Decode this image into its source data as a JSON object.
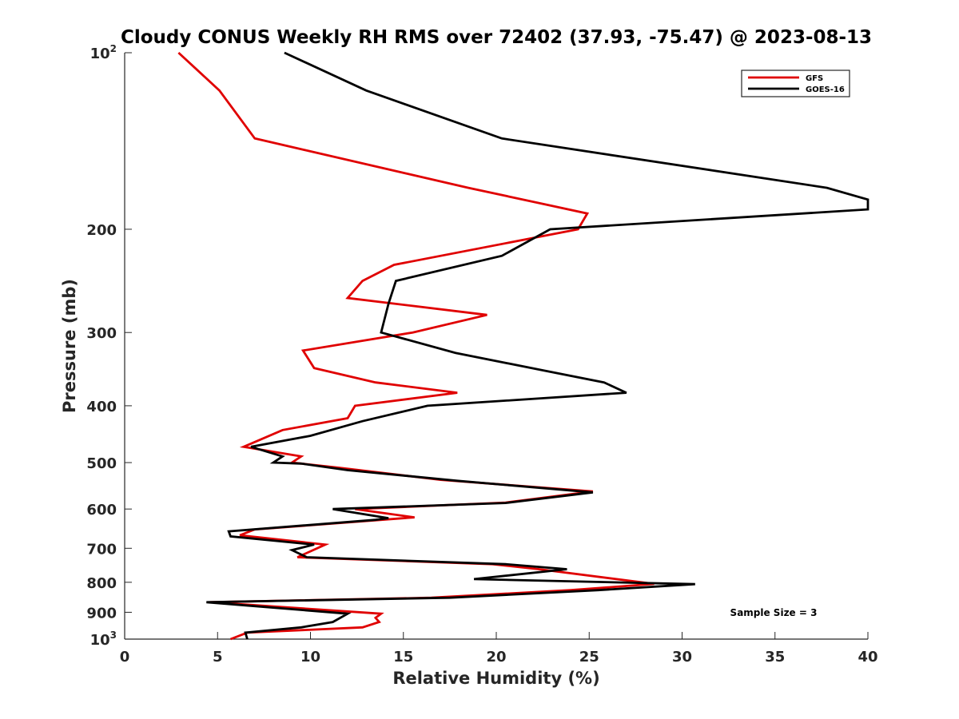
{
  "chart_data": {
    "type": "line",
    "title": "Cloudy CONUS Weekly RH RMS over 72402 (37.93, -75.47) @ 2023-08-13",
    "xlabel": "Relative Humidity (%)",
    "ylabel": "Pressure (mb)",
    "xlim": [
      0,
      40
    ],
    "ylim": [
      100,
      1000
    ],
    "y_scale": "log",
    "y_reversed": true,
    "grid": false,
    "legend_position": "top-right",
    "annotation": "Sample Size = 3",
    "x_ticks": [
      "0",
      "5",
      "10",
      "15",
      "20",
      "25",
      "30",
      "35",
      "40"
    ],
    "y_ticks": [
      {
        "value": 100,
        "base": "10",
        "exp": "2"
      },
      {
        "value": 200,
        "base": "200",
        "exp": ""
      },
      {
        "value": 300,
        "base": "300",
        "exp": ""
      },
      {
        "value": 400,
        "base": "400",
        "exp": ""
      },
      {
        "value": 500,
        "base": "500",
        "exp": ""
      },
      {
        "value": 600,
        "base": "600",
        "exp": ""
      },
      {
        "value": 700,
        "base": "700",
        "exp": ""
      },
      {
        "value": 800,
        "base": "800",
        "exp": ""
      },
      {
        "value": 900,
        "base": "900",
        "exp": ""
      },
      {
        "value": 1000,
        "base": "10",
        "exp": "3"
      }
    ],
    "series": [
      {
        "name": "GFS",
        "color": "#e00000",
        "points": [
          [
            2.9,
            100
          ],
          [
            5.1,
            116
          ],
          [
            7.0,
            140
          ],
          [
            18.5,
            170
          ],
          [
            24.9,
            188
          ],
          [
            24.4,
            200
          ],
          [
            14.5,
            230
          ],
          [
            12.8,
            245
          ],
          [
            12.0,
            262
          ],
          [
            19.5,
            280
          ],
          [
            15.5,
            300
          ],
          [
            9.6,
            322
          ],
          [
            10.2,
            345
          ],
          [
            13.5,
            365
          ],
          [
            17.9,
            380
          ],
          [
            12.4,
            400
          ],
          [
            12.0,
            420
          ],
          [
            8.5,
            440
          ],
          [
            6.4,
            470
          ],
          [
            9.5,
            488
          ],
          [
            9.0,
            500
          ],
          [
            11.5,
            510
          ],
          [
            17.0,
            535
          ],
          [
            25.2,
            560
          ],
          [
            20.5,
            585
          ],
          [
            12.4,
            600
          ],
          [
            15.6,
            620
          ],
          [
            7.0,
            650
          ],
          [
            6.2,
            665
          ],
          [
            10.8,
            690
          ],
          [
            9.3,
            725
          ],
          [
            19.8,
            745
          ],
          [
            22.3,
            760
          ],
          [
            28.5,
            805
          ],
          [
            24.0,
            825
          ],
          [
            16.5,
            850
          ],
          [
            4.6,
            865
          ],
          [
            13.8,
            905
          ],
          [
            13.5,
            920
          ],
          [
            13.7,
            935
          ],
          [
            12.8,
            955
          ],
          [
            6.6,
            975
          ],
          [
            5.7,
            1000
          ]
        ]
      },
      {
        "name": "GOES-16",
        "color": "#000000",
        "points": [
          [
            8.6,
            100
          ],
          [
            13.0,
            116
          ],
          [
            20.3,
            140
          ],
          [
            37.8,
            170
          ],
          [
            40.0,
            178
          ],
          [
            40.0,
            185
          ],
          [
            22.9,
            200
          ],
          [
            20.3,
            222
          ],
          [
            14.6,
            245
          ],
          [
            14.2,
            268
          ],
          [
            13.8,
            300
          ],
          [
            17.8,
            325
          ],
          [
            22.5,
            348
          ],
          [
            25.8,
            365
          ],
          [
            27.0,
            380
          ],
          [
            16.3,
            400
          ],
          [
            12.8,
            425
          ],
          [
            10.0,
            450
          ],
          [
            6.8,
            470
          ],
          [
            8.5,
            488
          ],
          [
            8.0,
            500
          ],
          [
            9.5,
            502
          ],
          [
            12.0,
            515
          ],
          [
            17.9,
            537
          ],
          [
            25.2,
            562
          ],
          [
            20.5,
            586
          ],
          [
            11.2,
            600
          ],
          [
            14.2,
            622
          ],
          [
            13.5,
            626
          ],
          [
            5.6,
            655
          ],
          [
            5.7,
            668
          ],
          [
            10.2,
            690
          ],
          [
            9.0,
            705
          ],
          [
            9.8,
            725
          ],
          [
            20.5,
            745
          ],
          [
            23.8,
            760
          ],
          [
            18.8,
            790
          ],
          [
            30.7,
            806
          ],
          [
            25.5,
            825
          ],
          [
            17.5,
            850
          ],
          [
            4.4,
            865
          ],
          [
            12.0,
            905
          ],
          [
            11.2,
            935
          ],
          [
            9.5,
            955
          ],
          [
            6.5,
            975
          ],
          [
            6.6,
            1000
          ]
        ]
      }
    ]
  }
}
